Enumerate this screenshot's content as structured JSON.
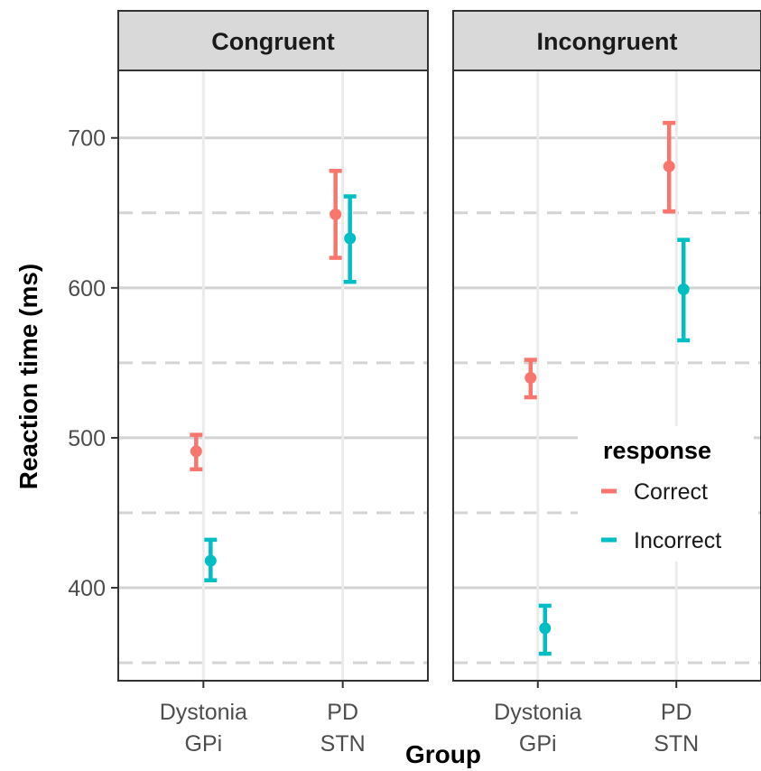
{
  "chart_data": {
    "type": "errorbar",
    "xlabel": "Group",
    "ylabel": "Reaction time (ms)",
    "ylim": [
      338,
      745
    ],
    "y_ticks": [
      "400",
      "500",
      "600",
      "700"
    ],
    "y_tick_values": [
      400,
      500,
      600,
      700
    ],
    "y_minor_values": [
      350,
      450,
      550,
      650
    ],
    "categories": [
      {
        "line1": "Dystonia",
        "line2": "GPi"
      },
      {
        "line1": "PD",
        "line2": "STN"
      }
    ],
    "panels": [
      {
        "title": "Congruent",
        "series": [
          {
            "name": "Correct",
            "points": [
              {
                "mean": 491,
                "low": 479,
                "high": 502
              },
              {
                "mean": 649,
                "low": 620,
                "high": 678
              }
            ]
          },
          {
            "name": "Incorrect",
            "points": [
              {
                "mean": 418,
                "low": 405,
                "high": 432
              },
              {
                "mean": 633,
                "low": 604,
                "high": 661
              }
            ]
          }
        ]
      },
      {
        "title": "Incongruent",
        "series": [
          {
            "name": "Correct",
            "points": [
              {
                "mean": 540,
                "low": 527,
                "high": 552
              },
              {
                "mean": 681,
                "low": 651,
                "high": 710
              }
            ]
          },
          {
            "name": "Incorrect",
            "points": [
              {
                "mean": 373,
                "low": 356,
                "high": 388
              },
              {
                "mean": 599,
                "low": 565,
                "high": 632
              }
            ]
          }
        ]
      }
    ],
    "legend": {
      "title": "response",
      "position": "inside-right",
      "entries": [
        {
          "label": "Correct",
          "color": "#F8766D"
        },
        {
          "label": "Incorrect",
          "color": "#00BFC4"
        }
      ]
    },
    "colors": {
      "Correct": "#F8766D",
      "Incorrect": "#00BFC4"
    },
    "grid": true
  }
}
